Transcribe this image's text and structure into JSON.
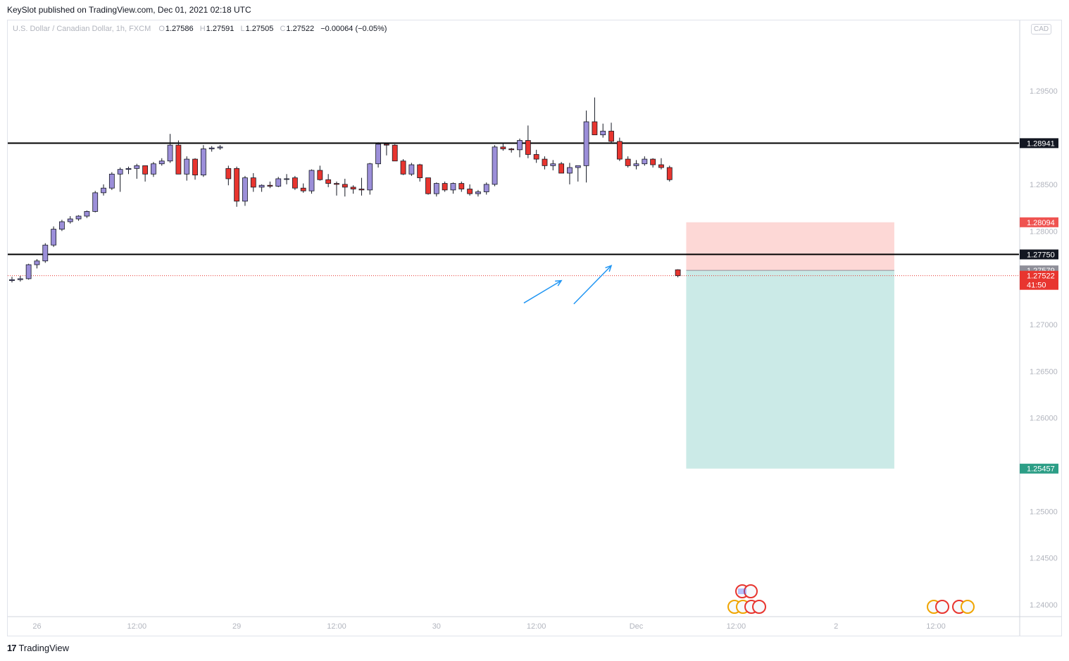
{
  "header": {
    "text": "KeySlot published on TradingView.com, Dec 01, 2021 02:18 UTC"
  },
  "legend": {
    "symbol": "U.S. Dollar / Canadian Dollar, 1h, FXCM",
    "o_label": "O",
    "o": "1.27586",
    "h_label": "H",
    "h": "1.27591",
    "l_label": "L",
    "l": "1.27505",
    "c_label": "C",
    "c": "1.27522",
    "change": "−0.00064 (−0.05%)"
  },
  "currency": "CAD",
  "footer": {
    "logo": "17",
    "brand": "TradingView"
  },
  "colors": {
    "up": "#9c8fd9",
    "down": "#e8352f",
    "stop_zone": "#fdd8d6",
    "target_zone": "#cbeae7",
    "target_tag": "#2c9e86",
    "stop_tag": "#ef5350",
    "last_tag": "#e8352f",
    "level_tag": "#131722",
    "entry_tag": "#8f8f99",
    "arrow": "#2196f3"
  },
  "chart_data": {
    "type": "candlestick",
    "timeframe": "1h",
    "ylim": [
      1.2388,
      1.30255
    ],
    "y_ticks": [
      "1.29500",
      "1.28500",
      "1.28000",
      "1.27000",
      "1.26500",
      "1.26000",
      "1.25000",
      "1.24500",
      "1.24000"
    ],
    "x_ticks": [
      "26",
      "12:00",
      "29",
      "12:00",
      "30",
      "12:00",
      "Dec",
      "12:00",
      "2",
      "12:00"
    ],
    "x_tick_bars": [
      3,
      15,
      27,
      39,
      51,
      63,
      75,
      87,
      99,
      111
    ],
    "horizontal_levels": [
      {
        "price": 1.28941,
        "label": "1.28941"
      },
      {
        "price": 1.2775,
        "label": "1.27750"
      }
    ],
    "short_position": {
      "start_bar": 81,
      "end_bar": 106,
      "entry": 1.27579,
      "entry_label": "1.27579",
      "stop": 1.28094,
      "stop_label": "1.28094",
      "target": 1.25457,
      "target_label": "1.25457"
    },
    "last_price": {
      "value": 1.27522,
      "label": "1.27522",
      "countdown": "41:50"
    },
    "arrows": [
      {
        "from_bar": 61.5,
        "from_price": 1.2723,
        "to_bar": 66,
        "to_price": 1.2747
      },
      {
        "from_bar": 67.5,
        "from_price": 1.2722,
        "to_bar": 72,
        "to_price": 1.2763
      }
    ],
    "candles": [
      [
        1.2747,
        1.2751,
        1.2745,
        1.2748
      ],
      [
        1.2748,
        1.2752,
        1.2746,
        1.2749
      ],
      [
        1.2749,
        1.2765,
        1.2748,
        1.2764
      ],
      [
        1.2764,
        1.277,
        1.276,
        1.2768
      ],
      [
        1.2768,
        1.2787,
        1.2766,
        1.2785
      ],
      [
        1.2785,
        1.2805,
        1.2783,
        1.2802
      ],
      [
        1.2802,
        1.2812,
        1.28,
        1.281
      ],
      [
        1.281,
        1.2816,
        1.2808,
        1.2813
      ],
      [
        1.2813,
        1.2817,
        1.2811,
        1.2816
      ],
      [
        1.2816,
        1.2822,
        1.2814,
        1.2821
      ],
      [
        1.2821,
        1.2843,
        1.282,
        1.2841
      ],
      [
        1.2841,
        1.285,
        1.2838,
        1.2846
      ],
      [
        1.2846,
        1.2863,
        1.2844,
        1.2861
      ],
      [
        1.2861,
        1.2868,
        1.2842,
        1.2866
      ],
      [
        1.2866,
        1.2869,
        1.2861,
        1.2867
      ],
      [
        1.2867,
        1.2872,
        1.2856,
        1.287
      ],
      [
        1.287,
        1.2869,
        1.2853,
        1.2861
      ],
      [
        1.2861,
        1.2874,
        1.2858,
        1.2872
      ],
      [
        1.2872,
        1.2878,
        1.287,
        1.2875
      ],
      [
        1.2875,
        1.2904,
        1.2873,
        1.2892
      ],
      [
        1.2892,
        1.2897,
        1.2865,
        1.2861
      ],
      [
        1.2861,
        1.288,
        1.2854,
        1.2877
      ],
      [
        1.2877,
        1.2878,
        1.2855,
        1.286
      ],
      [
        1.286,
        1.2892,
        1.2858,
        1.2888
      ],
      [
        1.2888,
        1.2891,
        1.2885,
        1.2889
      ],
      [
        1.2889,
        1.2892,
        1.2887,
        1.289
      ],
      [
        1.2867,
        1.287,
        1.2849,
        1.2856
      ],
      [
        1.2867,
        1.2869,
        1.2826,
        1.2832
      ],
      [
        1.2832,
        1.2859,
        1.2827,
        1.2857
      ],
      [
        1.2857,
        1.2862,
        1.2842,
        1.2847
      ],
      [
        1.2847,
        1.285,
        1.2842,
        1.2849
      ],
      [
        1.2849,
        1.2853,
        1.2846,
        1.2848
      ],
      [
        1.2848,
        1.2858,
        1.2847,
        1.2856
      ],
      [
        1.2856,
        1.2861,
        1.285,
        1.2856
      ],
      [
        1.2857,
        1.2859,
        1.2844,
        1.2846
      ],
      [
        1.2846,
        1.2851,
        1.2841,
        1.2843
      ],
      [
        1.2843,
        1.2866,
        1.284,
        1.2865
      ],
      [
        1.2865,
        1.287,
        1.2854,
        1.2855
      ],
      [
        1.2855,
        1.2861,
        1.2847,
        1.2851
      ],
      [
        1.2851,
        1.2853,
        1.2838,
        1.285
      ],
      [
        1.285,
        1.2856,
        1.2837,
        1.2847
      ],
      [
        1.2847,
        1.2849,
        1.284,
        1.2845
      ],
      [
        1.2845,
        1.2857,
        1.2838,
        1.2844
      ],
      [
        1.2844,
        1.2873,
        1.2839,
        1.2872
      ],
      [
        1.2872,
        1.2895,
        1.2868,
        1.2893
      ],
      [
        1.2893,
        1.2894,
        1.2881,
        1.2892
      ],
      [
        1.2892,
        1.2893,
        1.2875,
        1.2875
      ],
      [
        1.2875,
        1.2877,
        1.286,
        1.2861
      ],
      [
        1.2861,
        1.2873,
        1.2859,
        1.2871
      ],
      [
        1.2871,
        1.2872,
        1.2853,
        1.2857
      ],
      [
        1.2857,
        1.2857,
        1.2839,
        1.284
      ],
      [
        1.284,
        1.2852,
        1.2837,
        1.2851
      ],
      [
        1.2851,
        1.2853,
        1.2842,
        1.2844
      ],
      [
        1.2844,
        1.2852,
        1.284,
        1.2851
      ],
      [
        1.2851,
        1.2853,
        1.2842,
        1.2845
      ],
      [
        1.2845,
        1.285,
        1.2838,
        1.284
      ],
      [
        1.284,
        1.2844,
        1.2837,
        1.2842
      ],
      [
        1.2842,
        1.2852,
        1.2839,
        1.285
      ],
      [
        1.285,
        1.2892,
        1.2848,
        1.289
      ],
      [
        1.289,
        1.2894,
        1.2886,
        1.2888
      ],
      [
        1.2888,
        1.2889,
        1.2884,
        1.2887
      ],
      [
        1.2887,
        1.2899,
        1.2879,
        1.2897
      ],
      [
        1.2897,
        1.2913,
        1.2878,
        1.2882
      ],
      [
        1.2882,
        1.2887,
        1.2873,
        1.2877
      ],
      [
        1.2877,
        1.288,
        1.2866,
        1.287
      ],
      [
        1.287,
        1.2876,
        1.2865,
        1.2872
      ],
      [
        1.2872,
        1.2874,
        1.2864,
        1.2862
      ],
      [
        1.2862,
        1.2873,
        1.285,
        1.2868
      ],
      [
        1.2868,
        1.2869,
        1.2853,
        1.287
      ],
      [
        1.287,
        1.2929,
        1.2852,
        1.2917
      ],
      [
        1.2917,
        1.2943,
        1.2904,
        1.2903
      ],
      [
        1.2903,
        1.2915,
        1.29,
        1.2907
      ],
      [
        1.2907,
        1.2916,
        1.2894,
        1.2896
      ],
      [
        1.2896,
        1.29,
        1.2875,
        1.2877
      ],
      [
        1.2877,
        1.288,
        1.2868,
        1.287
      ],
      [
        1.287,
        1.2876,
        1.2866,
        1.2872
      ],
      [
        1.2872,
        1.288,
        1.287,
        1.2877
      ],
      [
        1.2877,
        1.2878,
        1.2868,
        1.2871
      ],
      [
        1.2871,
        1.2878,
        1.2866,
        1.2868
      ],
      [
        1.2868,
        1.287,
        1.2853,
        1.2855
      ],
      [
        1.27586,
        1.27591,
        1.27505,
        1.27522
      ]
    ]
  }
}
